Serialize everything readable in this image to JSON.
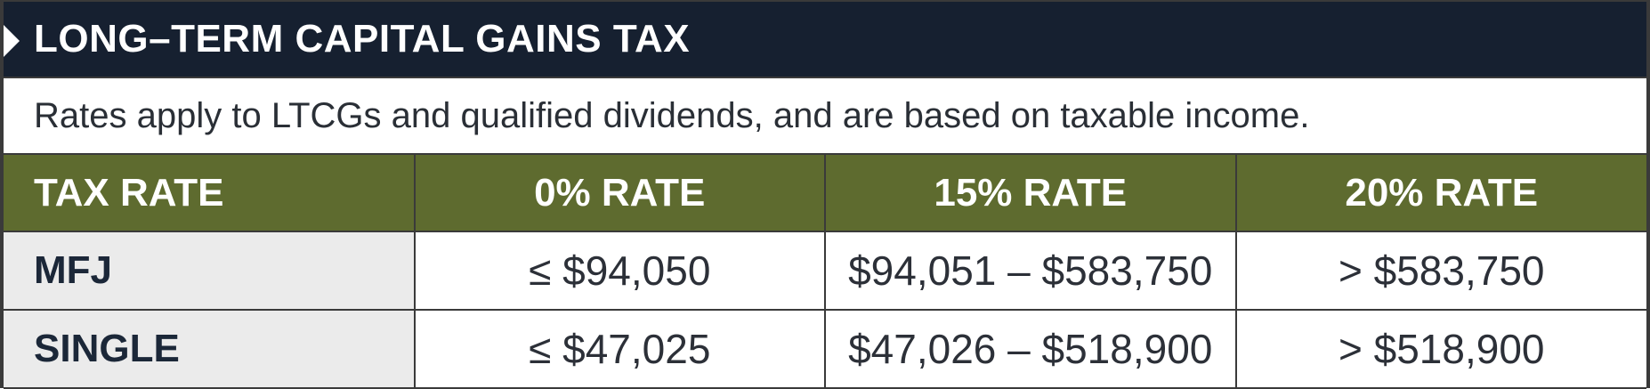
{
  "header": {
    "title": "LONG–TERM CAPITAL GAINS TAX"
  },
  "subtitle": "Rates apply to LTCGs and qualified dividends, and are based on taxable income.",
  "table": {
    "columns": [
      "TAX RATE",
      "0% RATE",
      "15% RATE",
      "20% RATE"
    ],
    "rows": [
      {
        "label": "MFJ",
        "values": [
          "≤ $94,050",
          "$94,051 – $583,750",
          "> $583,750"
        ]
      },
      {
        "label": "SINGLE",
        "values": [
          "≤ $47,025",
          "$47,026 – $518,900",
          "> $518,900"
        ]
      }
    ]
  },
  "colors": {
    "header_bg": "#162030",
    "column_header_bg": "#5e6b2f",
    "label_cell_bg": "#ebebeb"
  }
}
